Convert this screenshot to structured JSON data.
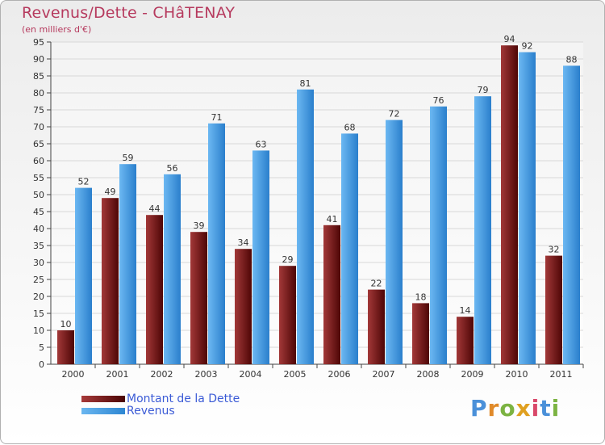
{
  "header": {
    "title": "Revenus/Dette - CHâTENAY",
    "subtitle": "(en milliers d'€)"
  },
  "legend": {
    "items": [
      {
        "label": "Montant de la Dette",
        "color": "#6b1414"
      },
      {
        "label": "Revenus",
        "color": "#4a9fe6"
      }
    ]
  },
  "brand": {
    "text": "Proxiti",
    "letter_colors": [
      "#4a90d9",
      "#e08a2a",
      "#7cb342",
      "#e0a020",
      "#d9486a",
      "#4a90d9",
      "#7cb342"
    ]
  },
  "colors": {
    "debt": "#6b1414",
    "revenue": "#4a9fe6",
    "title": "#b63a5e",
    "grid": "#d8d8d8"
  },
  "chart_data": {
    "type": "bar",
    "title": "Revenus/Dette - CHâTENAY",
    "subtitle": "(en milliers d'€)",
    "xlabel": "",
    "ylabel": "",
    "categories": [
      "2000",
      "2001",
      "2002",
      "2003",
      "2004",
      "2005",
      "2006",
      "2007",
      "2008",
      "2009",
      "2010",
      "2011"
    ],
    "series": [
      {
        "name": "Montant de la Dette",
        "values": [
          10,
          49,
          44,
          39,
          34,
          29,
          41,
          22,
          18,
          14,
          94,
          32
        ]
      },
      {
        "name": "Revenus",
        "values": [
          52,
          59,
          56,
          71,
          63,
          81,
          68,
          72,
          76,
          79,
          92,
          88
        ]
      }
    ],
    "ylim": [
      0,
      95
    ],
    "yticks": [
      0,
      5,
      10,
      15,
      20,
      25,
      30,
      35,
      40,
      45,
      50,
      55,
      60,
      65,
      70,
      75,
      80,
      85,
      90,
      95
    ],
    "grid": true,
    "legend_position": "bottom-left",
    "data_labels": true
  }
}
